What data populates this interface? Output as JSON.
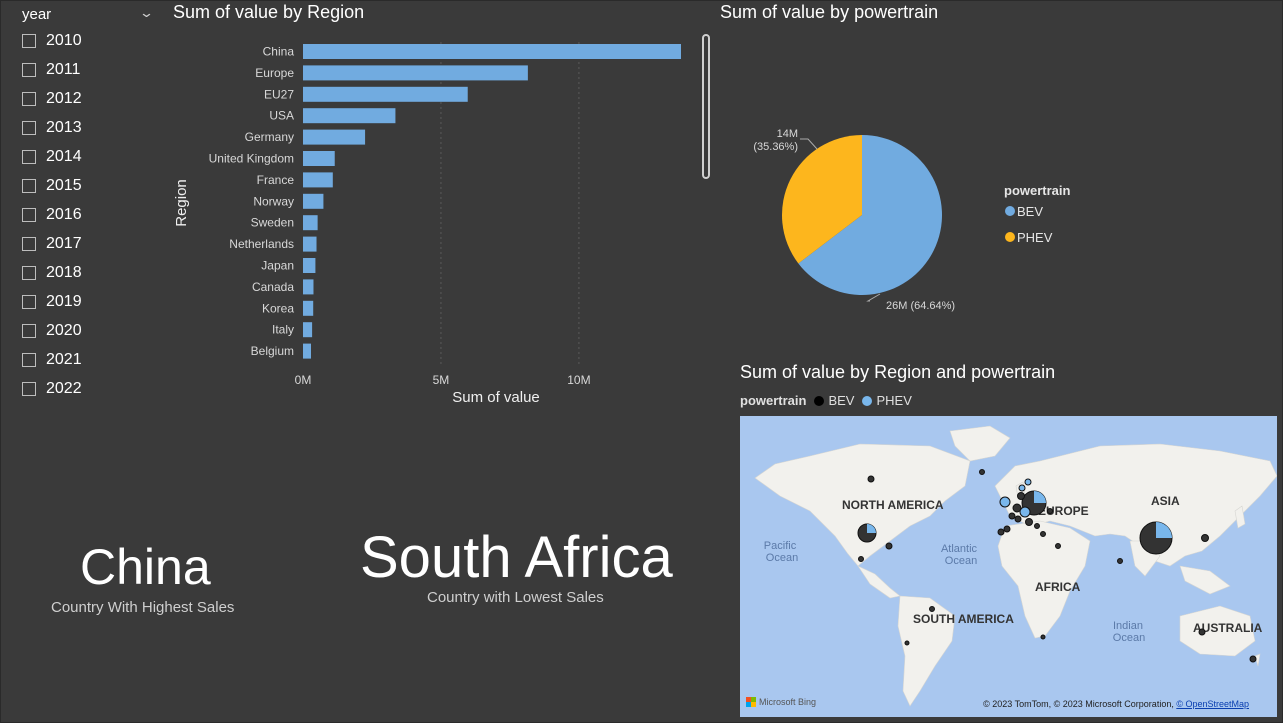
{
  "slicer": {
    "header": "year",
    "chevron": "⌄",
    "years": [
      "2010",
      "2011",
      "2012",
      "2013",
      "2014",
      "2015",
      "2016",
      "2017",
      "2018",
      "2019",
      "2020",
      "2021",
      "2022"
    ]
  },
  "bar_visual": {
    "title": "Sum of value by Region"
  },
  "pie_visual": {
    "title": "Sum of value by powertrain"
  },
  "map_visual": {
    "title": "Sum of value by Region and powertrain",
    "legend_title": "powertrain",
    "legend_items": [
      {
        "label": "BEV",
        "color": "#000000"
      },
      {
        "label": "PHEV",
        "color": "#79b7ec"
      }
    ],
    "labels": {
      "north_america": "NORTH AMERICA",
      "europe": "EUROPE",
      "asia": "ASIA",
      "africa": "AFRICA",
      "south_america": "SOUTH AMERICA",
      "australia": "AUSTRALIA",
      "pacific_1": "Pacific",
      "pacific_2": "Ocean",
      "atlantic_1": "Atlantic",
      "atlantic_2": "Ocean",
      "indian_1": "Indian",
      "indian_2": "Ocean"
    },
    "copyright": "© 2023 TomTom, © 2023 Microsoft Corporation, ",
    "osm_link": "© OpenStreetMap",
    "bing": "Microsoft Bing"
  },
  "cards": [
    {
      "value": "China",
      "label": "Country With Highest Sales"
    },
    {
      "value": "South Africa",
      "label": "Country with Lowest Sales"
    }
  ],
  "colors": {
    "bar": "#71abe0",
    "bev": "#71abe0",
    "phev": "#fdb61d",
    "background": "#3a3a3a"
  },
  "chart_data": [
    {
      "type": "bar",
      "orientation": "horizontal",
      "title": "Sum of value by Region",
      "xlabel": "Sum of value",
      "ylabel": "Region",
      "categories": [
        "China",
        "Europe",
        "EU27",
        "USA",
        "Germany",
        "United Kingdom",
        "France",
        "Norway",
        "Sweden",
        "Netherlands",
        "Japan",
        "Canada",
        "Korea",
        "Italy",
        "Belgium"
      ],
      "values": [
        13700000,
        8150000,
        5970000,
        3350000,
        2250000,
        1150000,
        1080000,
        740000,
        530000,
        490000,
        450000,
        380000,
        370000,
        330000,
        290000
      ],
      "xticks": [
        "0M",
        "5M",
        "10M"
      ],
      "xtick_values": [
        0,
        5000000,
        10000000
      ],
      "xlim": [
        0,
        13700000
      ],
      "grid": true
    },
    {
      "type": "pie",
      "title": "Sum of value by powertrain",
      "legend_title": "powertrain",
      "legend_position": "right",
      "slices": [
        {
          "label": "BEV",
          "value": 26,
          "percent": 64.64,
          "color": "#71abe0",
          "data_label": "26M (64.64%)"
        },
        {
          "label": "PHEV",
          "value": 14,
          "percent": 35.36,
          "color": "#fdb61d",
          "data_label_1": "14M",
          "data_label_2": "(35.36%)"
        }
      ]
    }
  ]
}
